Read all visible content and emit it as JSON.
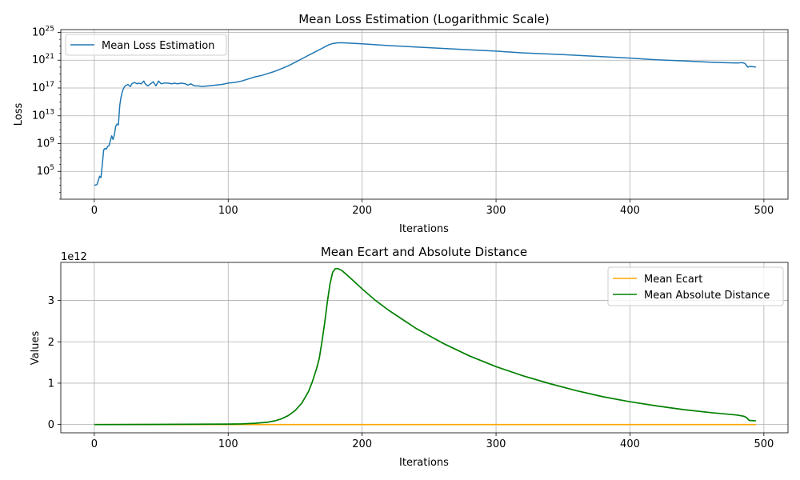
{
  "chart_data": [
    {
      "type": "line",
      "title": "Mean Loss Estimation (Logarithmic Scale)",
      "xlabel": "Iterations",
      "ylabel": "Loss",
      "yscale": "log",
      "grid": true,
      "legend_position": "top-left",
      "xlim": [
        -25,
        518
      ],
      "ylim_log10": [
        1.0,
        25.4
      ],
      "x_ticks": [
        0,
        100,
        200,
        300,
        400,
        500
      ],
      "y_tick_exponents": [
        5,
        9,
        13,
        17,
        21,
        25
      ],
      "series": [
        {
          "name": "Mean Loss Estimation",
          "color": "#1f77b4",
          "x": [
            0,
            2,
            4,
            5,
            6,
            7,
            8,
            9,
            10,
            11,
            12,
            13,
            14,
            15,
            16,
            17,
            18,
            19,
            20,
            21,
            22,
            23,
            25,
            27,
            28,
            30,
            32,
            33,
            35,
            37,
            38,
            40,
            42,
            44,
            46,
            48,
            50,
            52,
            55,
            58,
            60,
            62,
            65,
            68,
            70,
            72,
            75,
            78,
            80,
            85,
            90,
            95,
            100,
            105,
            110,
            115,
            120,
            125,
            130,
            135,
            140,
            145,
            150,
            155,
            160,
            165,
            170,
            175,
            178,
            182,
            186,
            190,
            200,
            220,
            250,
            280,
            300,
            320,
            350,
            380,
            400,
            420,
            440,
            460,
            480,
            484,
            486,
            488,
            490,
            494
          ],
          "log10_y": [
            3.0,
            3.1,
            4.3,
            4.1,
            6.0,
            8.1,
            8.3,
            8.2,
            8.6,
            8.7,
            9.4,
            10.1,
            9.6,
            10.3,
            11.5,
            11.8,
            11.7,
            14.5,
            15.7,
            16.5,
            17.0,
            17.3,
            17.5,
            17.2,
            17.6,
            17.8,
            17.6,
            17.7,
            17.6,
            18.0,
            17.6,
            17.3,
            17.6,
            17.9,
            17.3,
            18.0,
            17.6,
            17.7,
            17.7,
            17.6,
            17.7,
            17.6,
            17.7,
            17.6,
            17.4,
            17.6,
            17.3,
            17.3,
            17.2,
            17.3,
            17.4,
            17.5,
            17.7,
            17.8,
            18.0,
            18.3,
            18.6,
            18.8,
            19.1,
            19.4,
            19.8,
            20.2,
            20.7,
            21.2,
            21.7,
            22.2,
            22.7,
            23.2,
            23.4,
            23.5,
            23.5,
            23.45,
            23.35,
            23.1,
            22.8,
            22.5,
            22.3,
            22.05,
            21.8,
            21.5,
            21.3,
            21.05,
            20.9,
            20.7,
            20.6,
            20.65,
            20.5,
            20.0,
            20.1,
            20.0
          ]
        }
      ]
    },
    {
      "type": "line",
      "title": "Mean Ecart and Absolute Distance",
      "xlabel": "Iterations",
      "ylabel": "Values",
      "y_multiplier_label": "1e12",
      "grid": true,
      "legend_position": "top-right",
      "xlim": [
        -25,
        518
      ],
      "ylim": [
        -0.2,
        3.92
      ],
      "x_ticks": [
        0,
        100,
        200,
        300,
        400,
        500
      ],
      "y_ticks": [
        0,
        1,
        2,
        3
      ],
      "series": [
        {
          "name": "Mean Ecart",
          "color": "#ffa500",
          "x": [
            0,
            494
          ],
          "y": [
            0.0,
            0.0
          ]
        },
        {
          "name": "Mean Absolute Distance",
          "color": "#008000",
          "x": [
            0,
            50,
            100,
            110,
            120,
            130,
            135,
            140,
            145,
            150,
            155,
            160,
            163,
            166,
            168,
            170,
            172,
            174,
            176,
            178,
            180,
            182,
            185,
            190,
            200,
            210,
            220,
            240,
            260,
            280,
            300,
            320,
            340,
            360,
            380,
            400,
            420,
            440,
            460,
            480,
            485,
            487,
            489,
            494
          ],
          "y": [
            0.0,
            0.003,
            0.01,
            0.015,
            0.03,
            0.06,
            0.09,
            0.14,
            0.22,
            0.34,
            0.52,
            0.8,
            1.05,
            1.35,
            1.6,
            2.0,
            2.45,
            2.95,
            3.4,
            3.68,
            3.77,
            3.77,
            3.72,
            3.58,
            3.28,
            3.0,
            2.76,
            2.33,
            1.97,
            1.66,
            1.4,
            1.18,
            0.99,
            0.82,
            0.67,
            0.55,
            0.45,
            0.36,
            0.29,
            0.23,
            0.2,
            0.17,
            0.1,
            0.09
          ]
        }
      ]
    }
  ]
}
